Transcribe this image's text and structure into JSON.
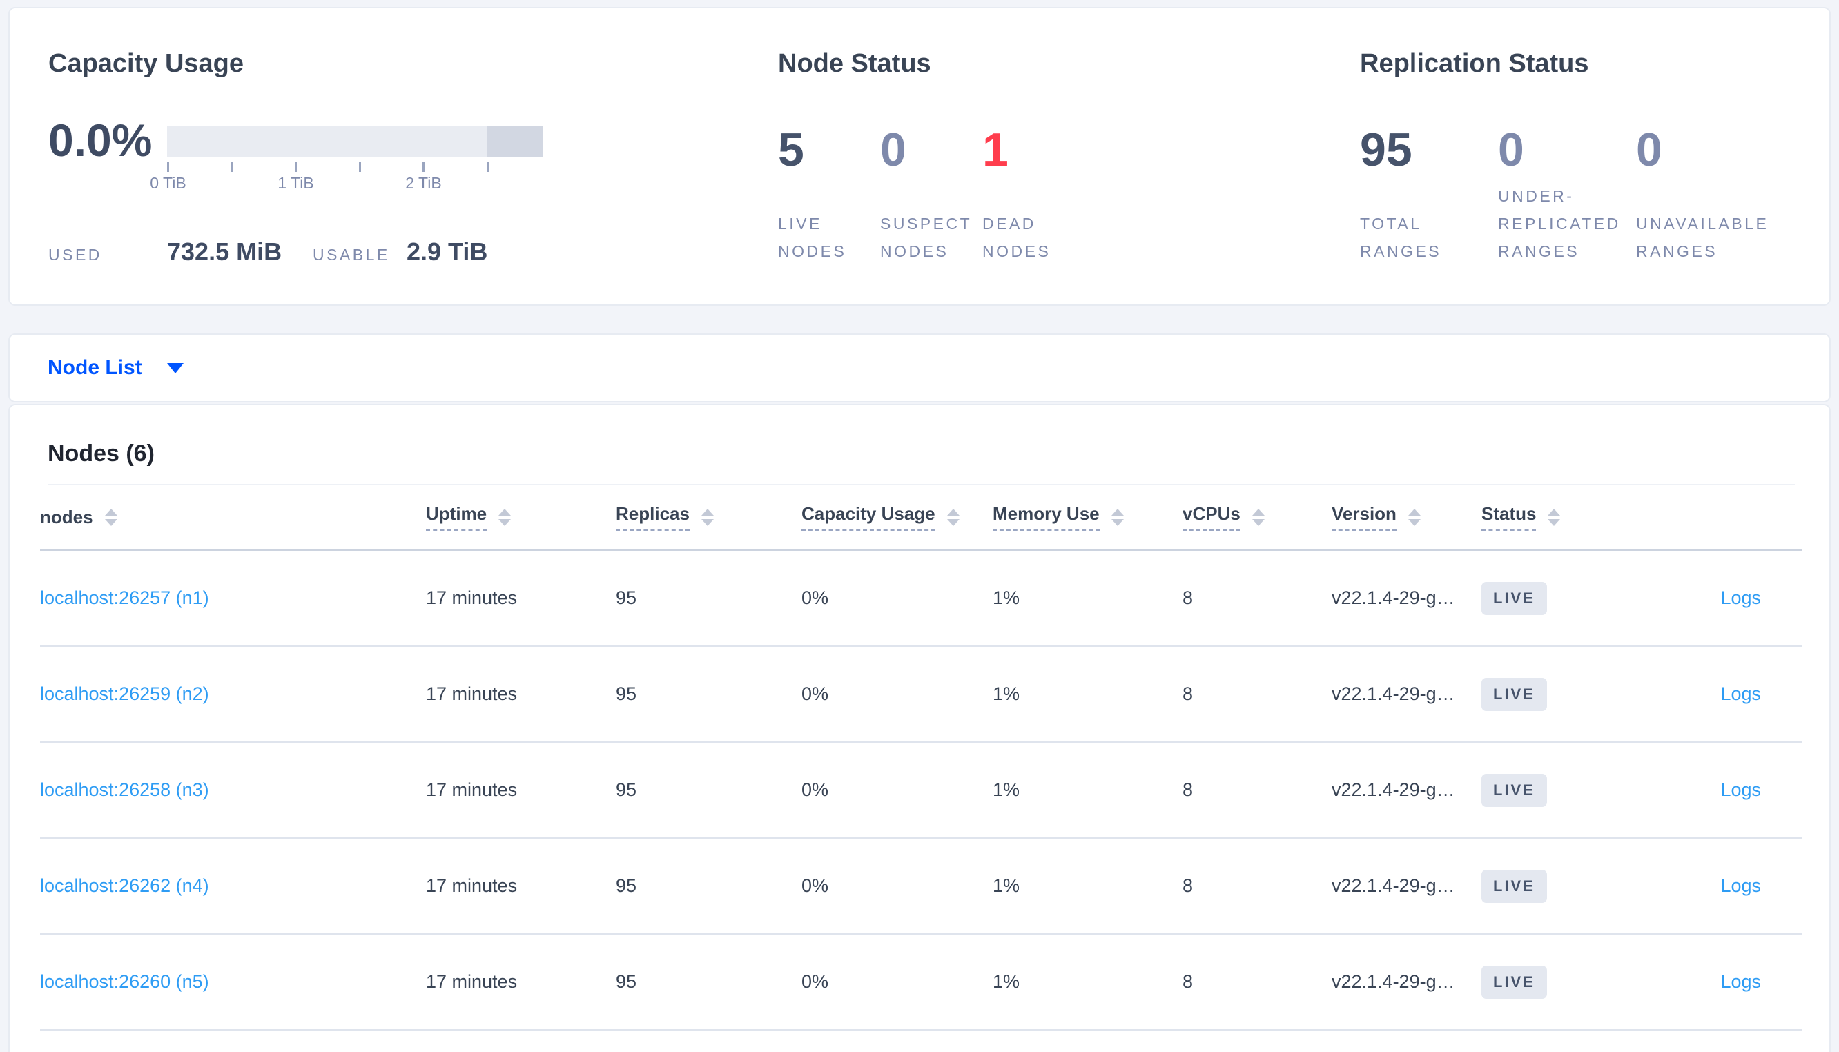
{
  "colors": {
    "accent_blue": "#0055ff",
    "link_blue": "#2e9cf4",
    "dead_red": "#ff3d4d",
    "dark_text": "#394455",
    "muted_text": "#7e89ab",
    "badge_bg": "#e4e8f0"
  },
  "icons": {
    "dropdown_caret": "chevron-down-icon",
    "sort": "sort-arrows-icon"
  },
  "panels": {
    "capacity": {
      "title": "Capacity Usage",
      "percent": "0.0%",
      "tick_labels": [
        "0 TiB",
        "1 TiB",
        "2 TiB"
      ],
      "used_label": "USED",
      "used_value": "732.5 MiB",
      "usable_label": "USABLE",
      "usable_value": "2.9 TiB"
    },
    "node_status": {
      "title": "Node Status",
      "stats": [
        {
          "value": "5",
          "label": "LIVE NODES",
          "tone": "dark"
        },
        {
          "value": "0",
          "label": "SUSPECT NODES",
          "tone": "muted"
        },
        {
          "value": "1",
          "label": "DEAD NODES",
          "tone": "red"
        }
      ]
    },
    "replication": {
      "title": "Replication Status",
      "stats": [
        {
          "value": "95",
          "label": "TOTAL RANGES",
          "tone": "dark"
        },
        {
          "value": "0",
          "label": "UNDER-REPLICATED RANGES",
          "tone": "muted"
        },
        {
          "value": "0",
          "label": "UNAVAILABLE RANGES",
          "tone": "muted"
        }
      ]
    }
  },
  "view_selector": {
    "label": "Node List"
  },
  "table": {
    "title": "Nodes (6)",
    "columns": [
      {
        "label": "nodes",
        "dashed": false,
        "sortable": true
      },
      {
        "label": "Uptime",
        "dashed": true,
        "sortable": true
      },
      {
        "label": "Replicas",
        "dashed": true,
        "sortable": true
      },
      {
        "label": "Capacity Usage",
        "dashed": true,
        "sortable": true
      },
      {
        "label": "Memory Use",
        "dashed": true,
        "sortable": true
      },
      {
        "label": "vCPUs",
        "dashed": true,
        "sortable": true
      },
      {
        "label": "Version",
        "dashed": true,
        "sortable": true
      },
      {
        "label": "Status",
        "dashed": true,
        "sortable": true
      },
      {
        "label": "",
        "dashed": false,
        "sortable": false
      }
    ],
    "rows": [
      {
        "node": "localhost:26257 (n1)",
        "uptime": "17 minutes",
        "replicas": "95",
        "capacity": "0%",
        "memory": "1%",
        "vcpus": "8",
        "version": "v22.1.4-29-g…",
        "status": "LIVE",
        "logs": "Logs"
      },
      {
        "node": "localhost:26259 (n2)",
        "uptime": "17 minutes",
        "replicas": "95",
        "capacity": "0%",
        "memory": "1%",
        "vcpus": "8",
        "version": "v22.1.4-29-g…",
        "status": "LIVE",
        "logs": "Logs"
      },
      {
        "node": "localhost:26258 (n3)",
        "uptime": "17 minutes",
        "replicas": "95",
        "capacity": "0%",
        "memory": "1%",
        "vcpus": "8",
        "version": "v22.1.4-29-g…",
        "status": "LIVE",
        "logs": "Logs"
      },
      {
        "node": "localhost:26262 (n4)",
        "uptime": "17 minutes",
        "replicas": "95",
        "capacity": "0%",
        "memory": "1%",
        "vcpus": "8",
        "version": "v22.1.4-29-g…",
        "status": "LIVE",
        "logs": "Logs"
      },
      {
        "node": "localhost:26260 (n5)",
        "uptime": "17 minutes",
        "replicas": "95",
        "capacity": "0%",
        "memory": "1%",
        "vcpus": "8",
        "version": "v22.1.4-29-g…",
        "status": "LIVE",
        "logs": "Logs"
      }
    ]
  }
}
